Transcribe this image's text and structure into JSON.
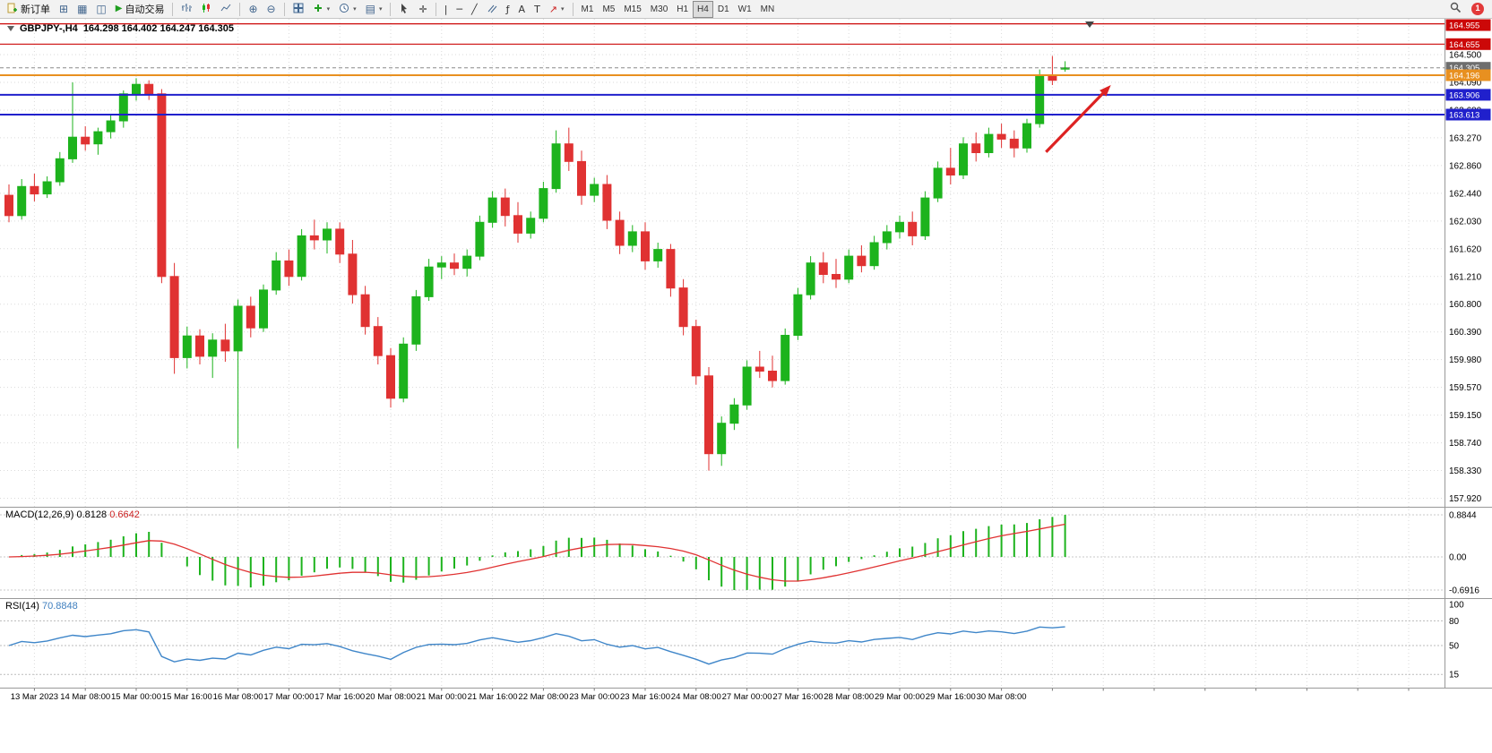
{
  "toolbar": {
    "new_order_label": "新订单",
    "auto_trading_label": "自动交易",
    "timeframes": [
      "M1",
      "M5",
      "M15",
      "M30",
      "H1",
      "H4",
      "D1",
      "W1",
      "MN"
    ],
    "active_timeframe": "H4",
    "notification_badge": "1"
  },
  "chart": {
    "title": "GBPJPY-,H4",
    "ohlc_text": "164.298 164.402 164.247 164.305"
  },
  "indicator_labels": {
    "macd_name": "MACD(12,26,9)",
    "macd_main": "0.8128",
    "macd_signal": "0.6642",
    "rsi_name": "RSI(14)",
    "rsi_value": "70.8848"
  },
  "colors": {
    "up": "#1db31d",
    "down": "#e03232",
    "macd_hist": "#1db31d",
    "macd_signal": "#e03232",
    "rsi_line": "#3f86c9",
    "grid": "#dadada",
    "arrow": "#dd2222"
  },
  "chart_data": {
    "type": "candlestick",
    "symbol": "GBPJPY-",
    "timeframe": "H4",
    "ohlc_readout": {
      "open": "164.298",
      "high": "164.402",
      "low": "164.247",
      "close": "164.305"
    },
    "candles": [
      [
        162.42,
        162.58,
        162.02,
        162.12
      ],
      [
        162.12,
        162.66,
        162.06,
        162.55
      ],
      [
        162.55,
        162.74,
        162.33,
        162.44
      ],
      [
        162.44,
        162.7,
        162.38,
        162.62
      ],
      [
        162.62,
        163.06,
        162.56,
        162.96
      ],
      [
        162.96,
        164.09,
        162.9,
        163.28
      ],
      [
        163.28,
        163.44,
        163.08,
        163.18
      ],
      [
        163.18,
        163.42,
        163.02,
        163.36
      ],
      [
        163.36,
        163.62,
        163.26,
        163.52
      ],
      [
        163.52,
        163.97,
        163.42,
        163.92
      ],
      [
        163.92,
        164.15,
        163.82,
        164.06
      ],
      [
        164.06,
        164.12,
        163.83,
        163.92
      ],
      [
        163.92,
        163.99,
        161.12,
        161.22
      ],
      [
        161.22,
        161.42,
        159.78,
        160.02
      ],
      [
        160.02,
        160.48,
        159.86,
        160.34
      ],
      [
        160.34,
        160.44,
        159.92,
        160.04
      ],
      [
        160.04,
        160.38,
        159.72,
        160.28
      ],
      [
        160.28,
        160.52,
        159.96,
        160.12
      ],
      [
        160.12,
        160.88,
        158.68,
        160.78
      ],
      [
        160.78,
        160.92,
        160.32,
        160.46
      ],
      [
        160.46,
        161.1,
        160.4,
        161.02
      ],
      [
        161.02,
        161.58,
        160.95,
        161.45
      ],
      [
        161.45,
        161.62,
        161.08,
        161.22
      ],
      [
        161.22,
        161.92,
        161.16,
        161.82
      ],
      [
        161.82,
        162.06,
        161.62,
        161.76
      ],
      [
        161.76,
        162.02,
        161.56,
        161.92
      ],
      [
        161.92,
        162.02,
        161.42,
        161.55
      ],
      [
        161.55,
        161.76,
        160.82,
        160.95
      ],
      [
        160.95,
        161.08,
        160.36,
        160.48
      ],
      [
        160.48,
        160.62,
        159.92,
        160.05
      ],
      [
        160.05,
        160.16,
        159.28,
        159.42
      ],
      [
        159.42,
        160.32,
        159.36,
        160.22
      ],
      [
        160.22,
        161.02,
        160.12,
        160.92
      ],
      [
        160.92,
        161.48,
        160.86,
        161.36
      ],
      [
        161.36,
        161.52,
        161.18,
        161.42
      ],
      [
        161.42,
        161.56,
        161.24,
        161.34
      ],
      [
        161.34,
        161.62,
        161.22,
        161.52
      ],
      [
        161.52,
        162.12,
        161.46,
        162.02
      ],
      [
        162.02,
        162.48,
        161.94,
        162.38
      ],
      [
        162.38,
        162.52,
        161.96,
        162.12
      ],
      [
        162.12,
        162.32,
        161.72,
        161.86
      ],
      [
        161.86,
        162.18,
        161.78,
        162.08
      ],
      [
        162.08,
        162.62,
        162.02,
        162.52
      ],
      [
        162.52,
        163.38,
        162.46,
        163.18
      ],
      [
        163.18,
        163.42,
        162.78,
        162.92
      ],
      [
        162.92,
        163.08,
        162.28,
        162.42
      ],
      [
        162.42,
        162.68,
        162.32,
        162.58
      ],
      [
        162.58,
        162.72,
        161.92,
        162.05
      ],
      [
        162.05,
        162.18,
        161.55,
        161.68
      ],
      [
        161.68,
        161.98,
        161.58,
        161.88
      ],
      [
        161.88,
        162.02,
        161.32,
        161.45
      ],
      [
        161.45,
        161.72,
        161.35,
        161.62
      ],
      [
        161.62,
        161.7,
        160.92,
        161.05
      ],
      [
        161.05,
        161.18,
        160.35,
        160.48
      ],
      [
        160.48,
        160.58,
        159.62,
        159.75
      ],
      [
        159.75,
        159.88,
        158.35,
        158.6
      ],
      [
        158.6,
        159.15,
        158.42,
        159.05
      ],
      [
        159.05,
        159.42,
        158.95,
        159.32
      ],
      [
        159.32,
        159.98,
        159.25,
        159.88
      ],
      [
        159.88,
        160.12,
        159.72,
        159.82
      ],
      [
        159.82,
        160.05,
        159.58,
        159.68
      ],
      [
        159.68,
        160.45,
        159.62,
        160.35
      ],
      [
        160.35,
        161.05,
        160.28,
        160.95
      ],
      [
        160.95,
        161.52,
        160.88,
        161.42
      ],
      [
        161.42,
        161.58,
        161.12,
        161.25
      ],
      [
        161.25,
        161.48,
        161.05,
        161.18
      ],
      [
        161.18,
        161.62,
        161.12,
        161.52
      ],
      [
        161.52,
        161.68,
        161.28,
        161.38
      ],
      [
        161.38,
        161.82,
        161.32,
        161.72
      ],
      [
        161.72,
        161.98,
        161.62,
        161.88
      ],
      [
        161.88,
        162.12,
        161.78,
        162.02
      ],
      [
        162.02,
        162.18,
        161.68,
        161.82
      ],
      [
        161.82,
        162.48,
        161.76,
        162.38
      ],
      [
        162.38,
        162.92,
        162.32,
        162.82
      ],
      [
        162.82,
        163.12,
        162.58,
        162.72
      ],
      [
        162.72,
        163.28,
        162.66,
        163.18
      ],
      [
        163.18,
        163.35,
        162.92,
        163.05
      ],
      [
        163.05,
        163.42,
        162.98,
        163.32
      ],
      [
        163.32,
        163.48,
        163.12,
        163.25
      ],
      [
        163.25,
        163.38,
        162.98,
        163.12
      ],
      [
        163.12,
        163.55,
        163.05,
        163.48
      ],
      [
        163.48,
        164.28,
        163.42,
        164.18
      ],
      [
        164.18,
        164.48,
        164.05,
        164.12
      ],
      [
        164.298,
        164.402,
        164.247,
        164.305
      ]
    ],
    "time_labels": [
      "13 Mar 2023",
      "14 Mar 08:00",
      "15 Mar 00:00",
      "15 Mar 16:00",
      "16 Mar 08:00",
      "17 Mar 00:00",
      "17 Mar 16:00",
      "20 Mar 08:00",
      "21 Mar 00:00",
      "21 Mar 16:00",
      "22 Mar 08:00",
      "23 Mar 00:00",
      "23 Mar 16:00",
      "24 Mar 08:00",
      "27 Mar 00:00",
      "27 Mar 16:00",
      "28 Mar 08:00",
      "29 Mar 00:00",
      "29 Mar 16:00",
      "30 Mar 08:00"
    ],
    "price_axis_labels": [
      "164.500",
      "164.090",
      "163.680",
      "163.270",
      "162.860",
      "162.440",
      "162.030",
      "161.620",
      "161.210",
      "160.800",
      "160.390",
      "159.980",
      "159.570",
      "159.150",
      "158.740",
      "158.330",
      "157.920"
    ],
    "hlines": [
      {
        "price": 164.955,
        "label": "164.955",
        "color": "#cc0808",
        "width": 1.2
      },
      {
        "price": 164.655,
        "label": "164.655",
        "color": "#cc0808",
        "width": 1.2
      },
      {
        "price": 164.196,
        "label": "164.196",
        "color": "#e89020",
        "width": 2
      },
      {
        "price": 163.906,
        "label": "163.906",
        "color": "#2020cc",
        "width": 2
      },
      {
        "price": 163.613,
        "label": "163.613",
        "color": "#2020cc",
        "width": 2
      }
    ],
    "current_price": {
      "value": 164.305,
      "label": "164.305"
    },
    "arrow": {
      "from_candle": 81.5,
      "from_price": 163.06,
      "to_candle": 86.6,
      "to_price": 164.05
    },
    "macd": {
      "max": 0.8844,
      "min": -0.6916,
      "axis_labels": [
        "0.8844",
        "0.00",
        "-0.6916"
      ]
    },
    "rsi": {
      "levels": [
        80,
        50,
        15
      ],
      "axis_labels": [
        "100",
        "80",
        "50",
        "15"
      ]
    }
  }
}
